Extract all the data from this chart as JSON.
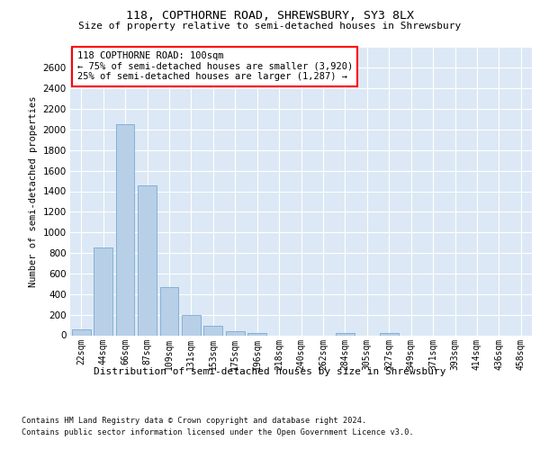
{
  "title": "118, COPTHORNE ROAD, SHREWSBURY, SY3 8LX",
  "subtitle": "Size of property relative to semi-detached houses in Shrewsbury",
  "xlabel_bottom": "Distribution of semi-detached houses by size in Shrewsbury",
  "ylabel": "Number of semi-detached properties",
  "bar_color": "#b8cfe8",
  "bar_edge_color": "#6a9fc8",
  "categories": [
    "22sqm",
    "44sqm",
    "66sqm",
    "87sqm",
    "109sqm",
    "131sqm",
    "153sqm",
    "175sqm",
    "196sqm",
    "218sqm",
    "240sqm",
    "262sqm",
    "284sqm",
    "305sqm",
    "327sqm",
    "349sqm",
    "371sqm",
    "393sqm",
    "414sqm",
    "436sqm",
    "458sqm"
  ],
  "values": [
    55,
    850,
    2050,
    1460,
    470,
    200,
    95,
    40,
    25,
    0,
    0,
    0,
    25,
    0,
    25,
    0,
    0,
    0,
    0,
    0,
    0
  ],
  "ylim": [
    0,
    2800
  ],
  "yticks": [
    0,
    200,
    400,
    600,
    800,
    1000,
    1200,
    1400,
    1600,
    1800,
    2000,
    2200,
    2400,
    2600
  ],
  "annotation_title": "118 COPTHORNE ROAD: 100sqm",
  "annotation_line1": "← 75% of semi-detached houses are smaller (3,920)",
  "annotation_line2": "25% of semi-detached houses are larger (1,287) →",
  "footer1": "Contains HM Land Registry data © Crown copyright and database right 2024.",
  "footer2": "Contains public sector information licensed under the Open Government Licence v3.0.",
  "bg_color": "#dce8f5",
  "grid_color": "#ffffff"
}
